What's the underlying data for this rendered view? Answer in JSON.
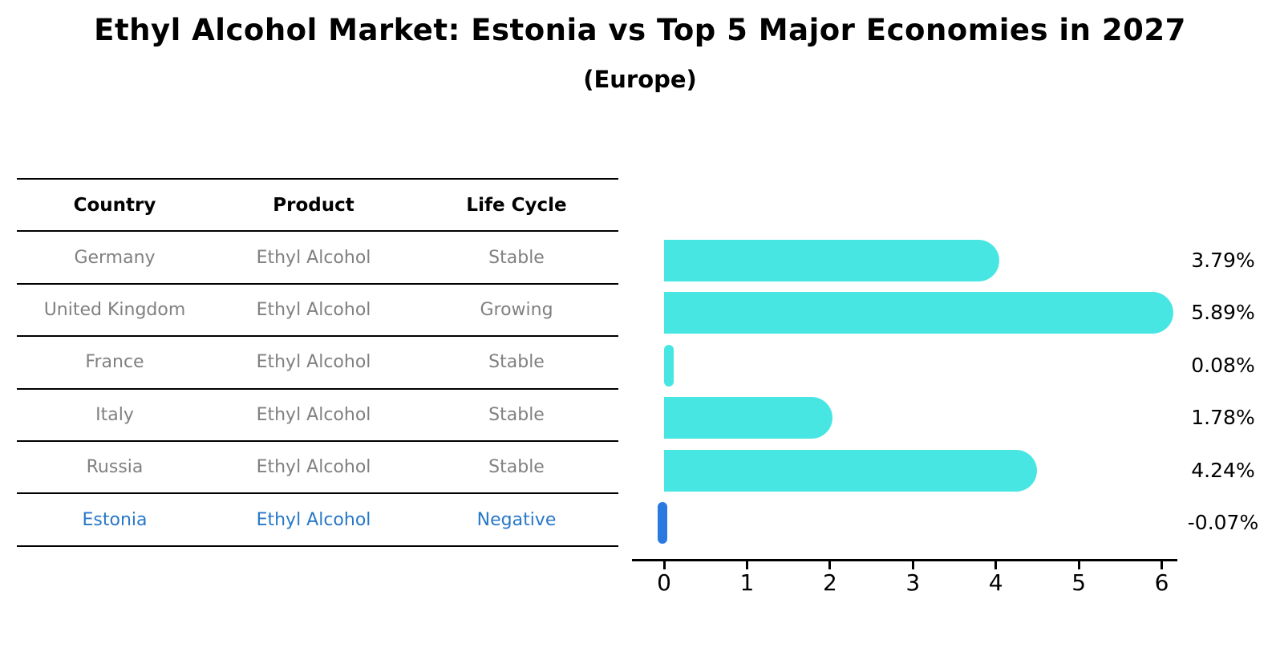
{
  "title": "Ethyl Alcohol Market: Estonia vs Top 5 Major Economies in 2027",
  "subtitle": "(Europe)",
  "colors": {
    "bar": "#48e6e3",
    "highlight_bar": "#2a79de",
    "highlight_text": "#2878c8",
    "table_text": "#808080",
    "line": "#000000"
  },
  "table": {
    "headers": [
      "Country",
      "Product",
      "Life Cycle"
    ],
    "rows": [
      {
        "country": "Germany",
        "product": "Ethyl Alcohol",
        "life_cycle": "Stable",
        "highlight": false
      },
      {
        "country": "United Kingdom",
        "product": "Ethyl Alcohol",
        "life_cycle": "Growing",
        "highlight": false
      },
      {
        "country": "France",
        "product": "Ethyl Alcohol",
        "life_cycle": "Stable",
        "highlight": false
      },
      {
        "country": "Italy",
        "product": "Ethyl Alcohol",
        "life_cycle": "Stable",
        "highlight": false
      },
      {
        "country": "Russia",
        "product": "Ethyl Alcohol",
        "life_cycle": "Stable",
        "highlight": false
      },
      {
        "country": "Estonia",
        "product": "Ethyl Alcohol",
        "life_cycle": "Negative",
        "highlight": true
      }
    ]
  },
  "chart_data": {
    "type": "bar",
    "orientation": "horizontal",
    "title": "Ethyl Alcohol Market: Estonia vs Top 5 Major Economies in 2027",
    "subtitle": "(Europe)",
    "categories": [
      "Germany",
      "United Kingdom",
      "France",
      "Italy",
      "Russia",
      "Estonia"
    ],
    "values": [
      3.79,
      5.89,
      0.08,
      1.78,
      4.24,
      -0.07
    ],
    "value_labels": [
      "3.79%",
      "5.89%",
      "0.08%",
      "1.78%",
      "4.24%",
      "-0.07%"
    ],
    "unit": "percent",
    "xticks": [
      "0",
      "1",
      "2",
      "3",
      "4",
      "5",
      "6"
    ],
    "xlim": [
      -0.4,
      6.2
    ],
    "xlabel": "",
    "ylabel": "",
    "grid": false,
    "legend": false,
    "highlight_category": "Estonia"
  }
}
